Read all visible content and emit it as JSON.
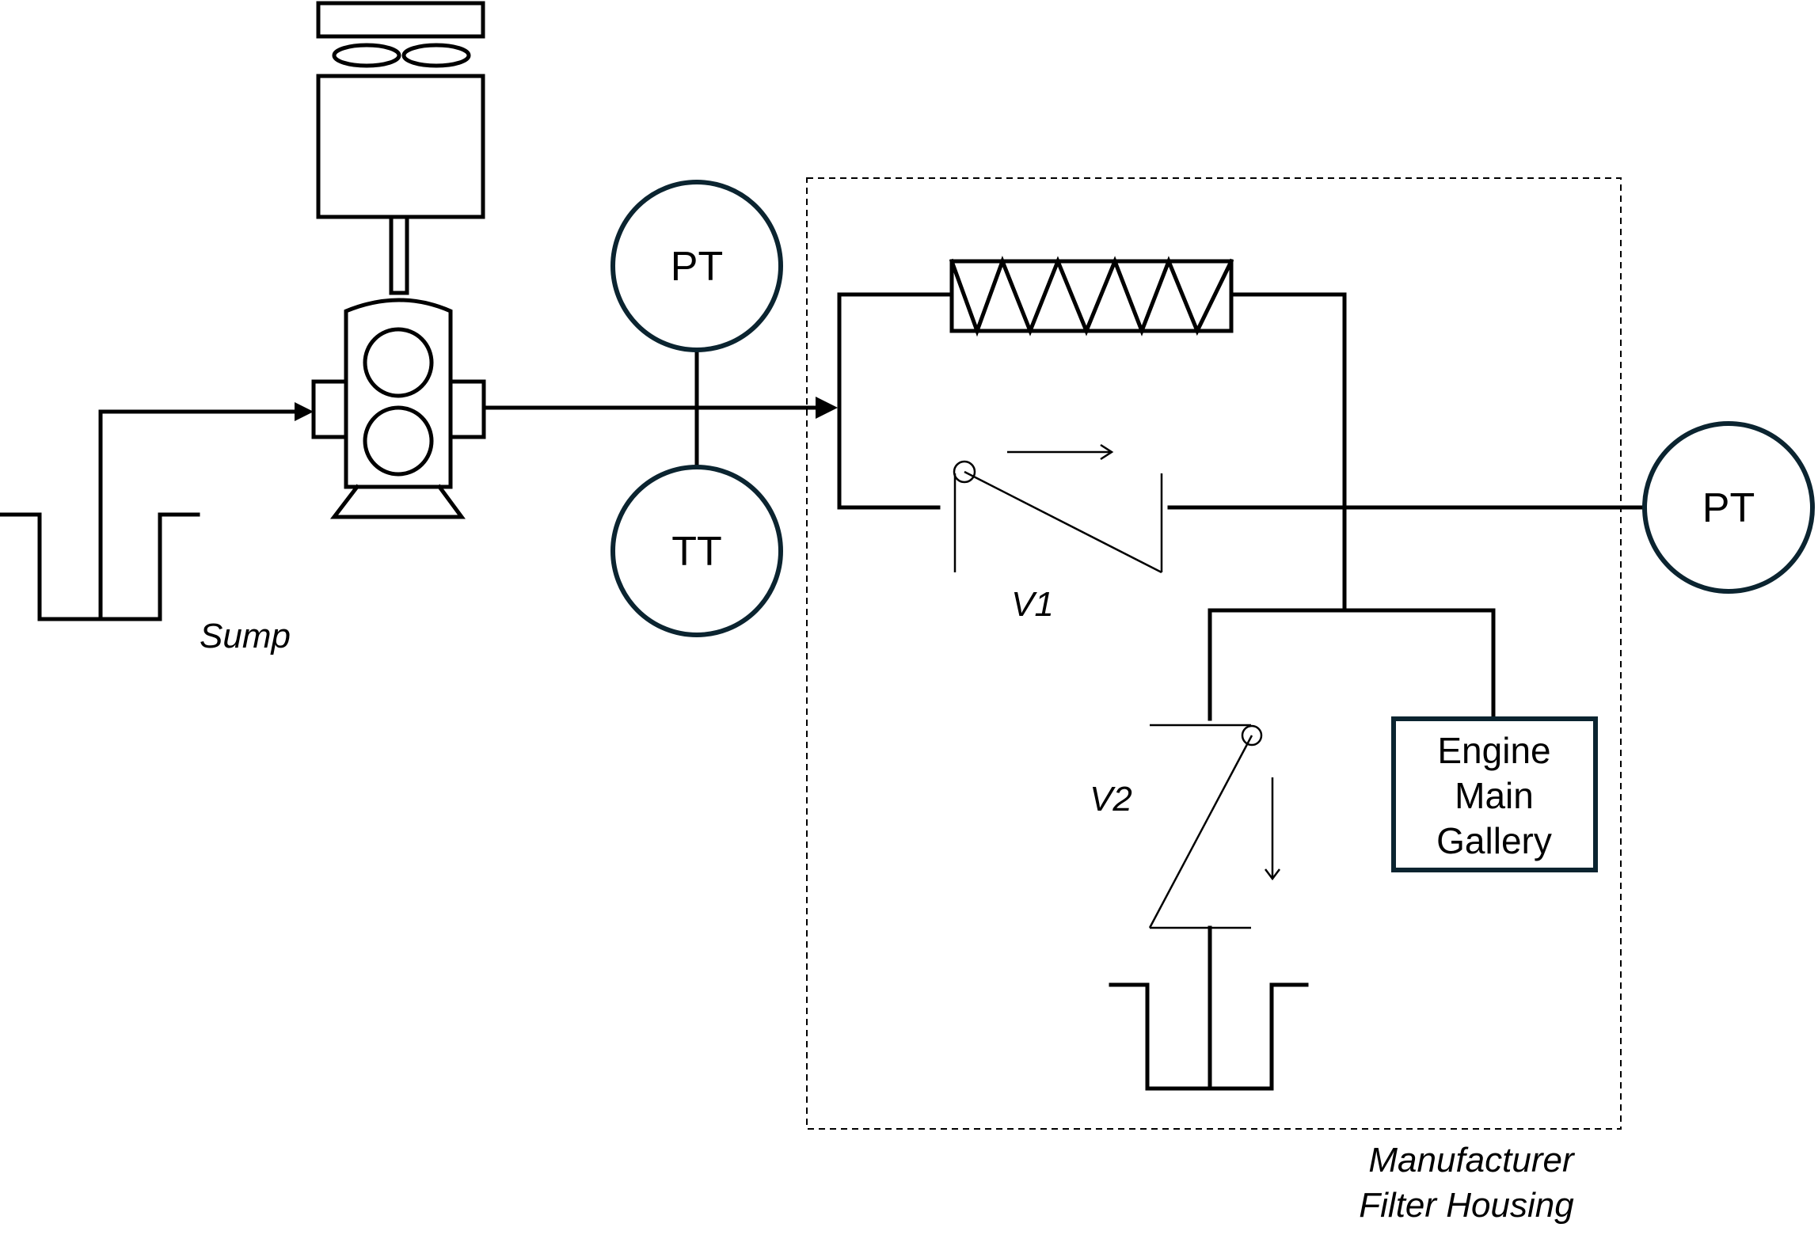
{
  "labels": {
    "sump": "Sump",
    "pt_left": "PT",
    "tt": "TT",
    "pt_right": "PT",
    "v1": "V1",
    "v2": "V2",
    "engine_line1": "Engine",
    "engine_line2": "Main",
    "engine_line3": "Gallery",
    "housing_line1": "Manufacturer",
    "housing_line2": "Filter Housing"
  },
  "colors": {
    "line": "#000000",
    "gauge_stroke": "#0b2430",
    "background": "#ffffff"
  }
}
